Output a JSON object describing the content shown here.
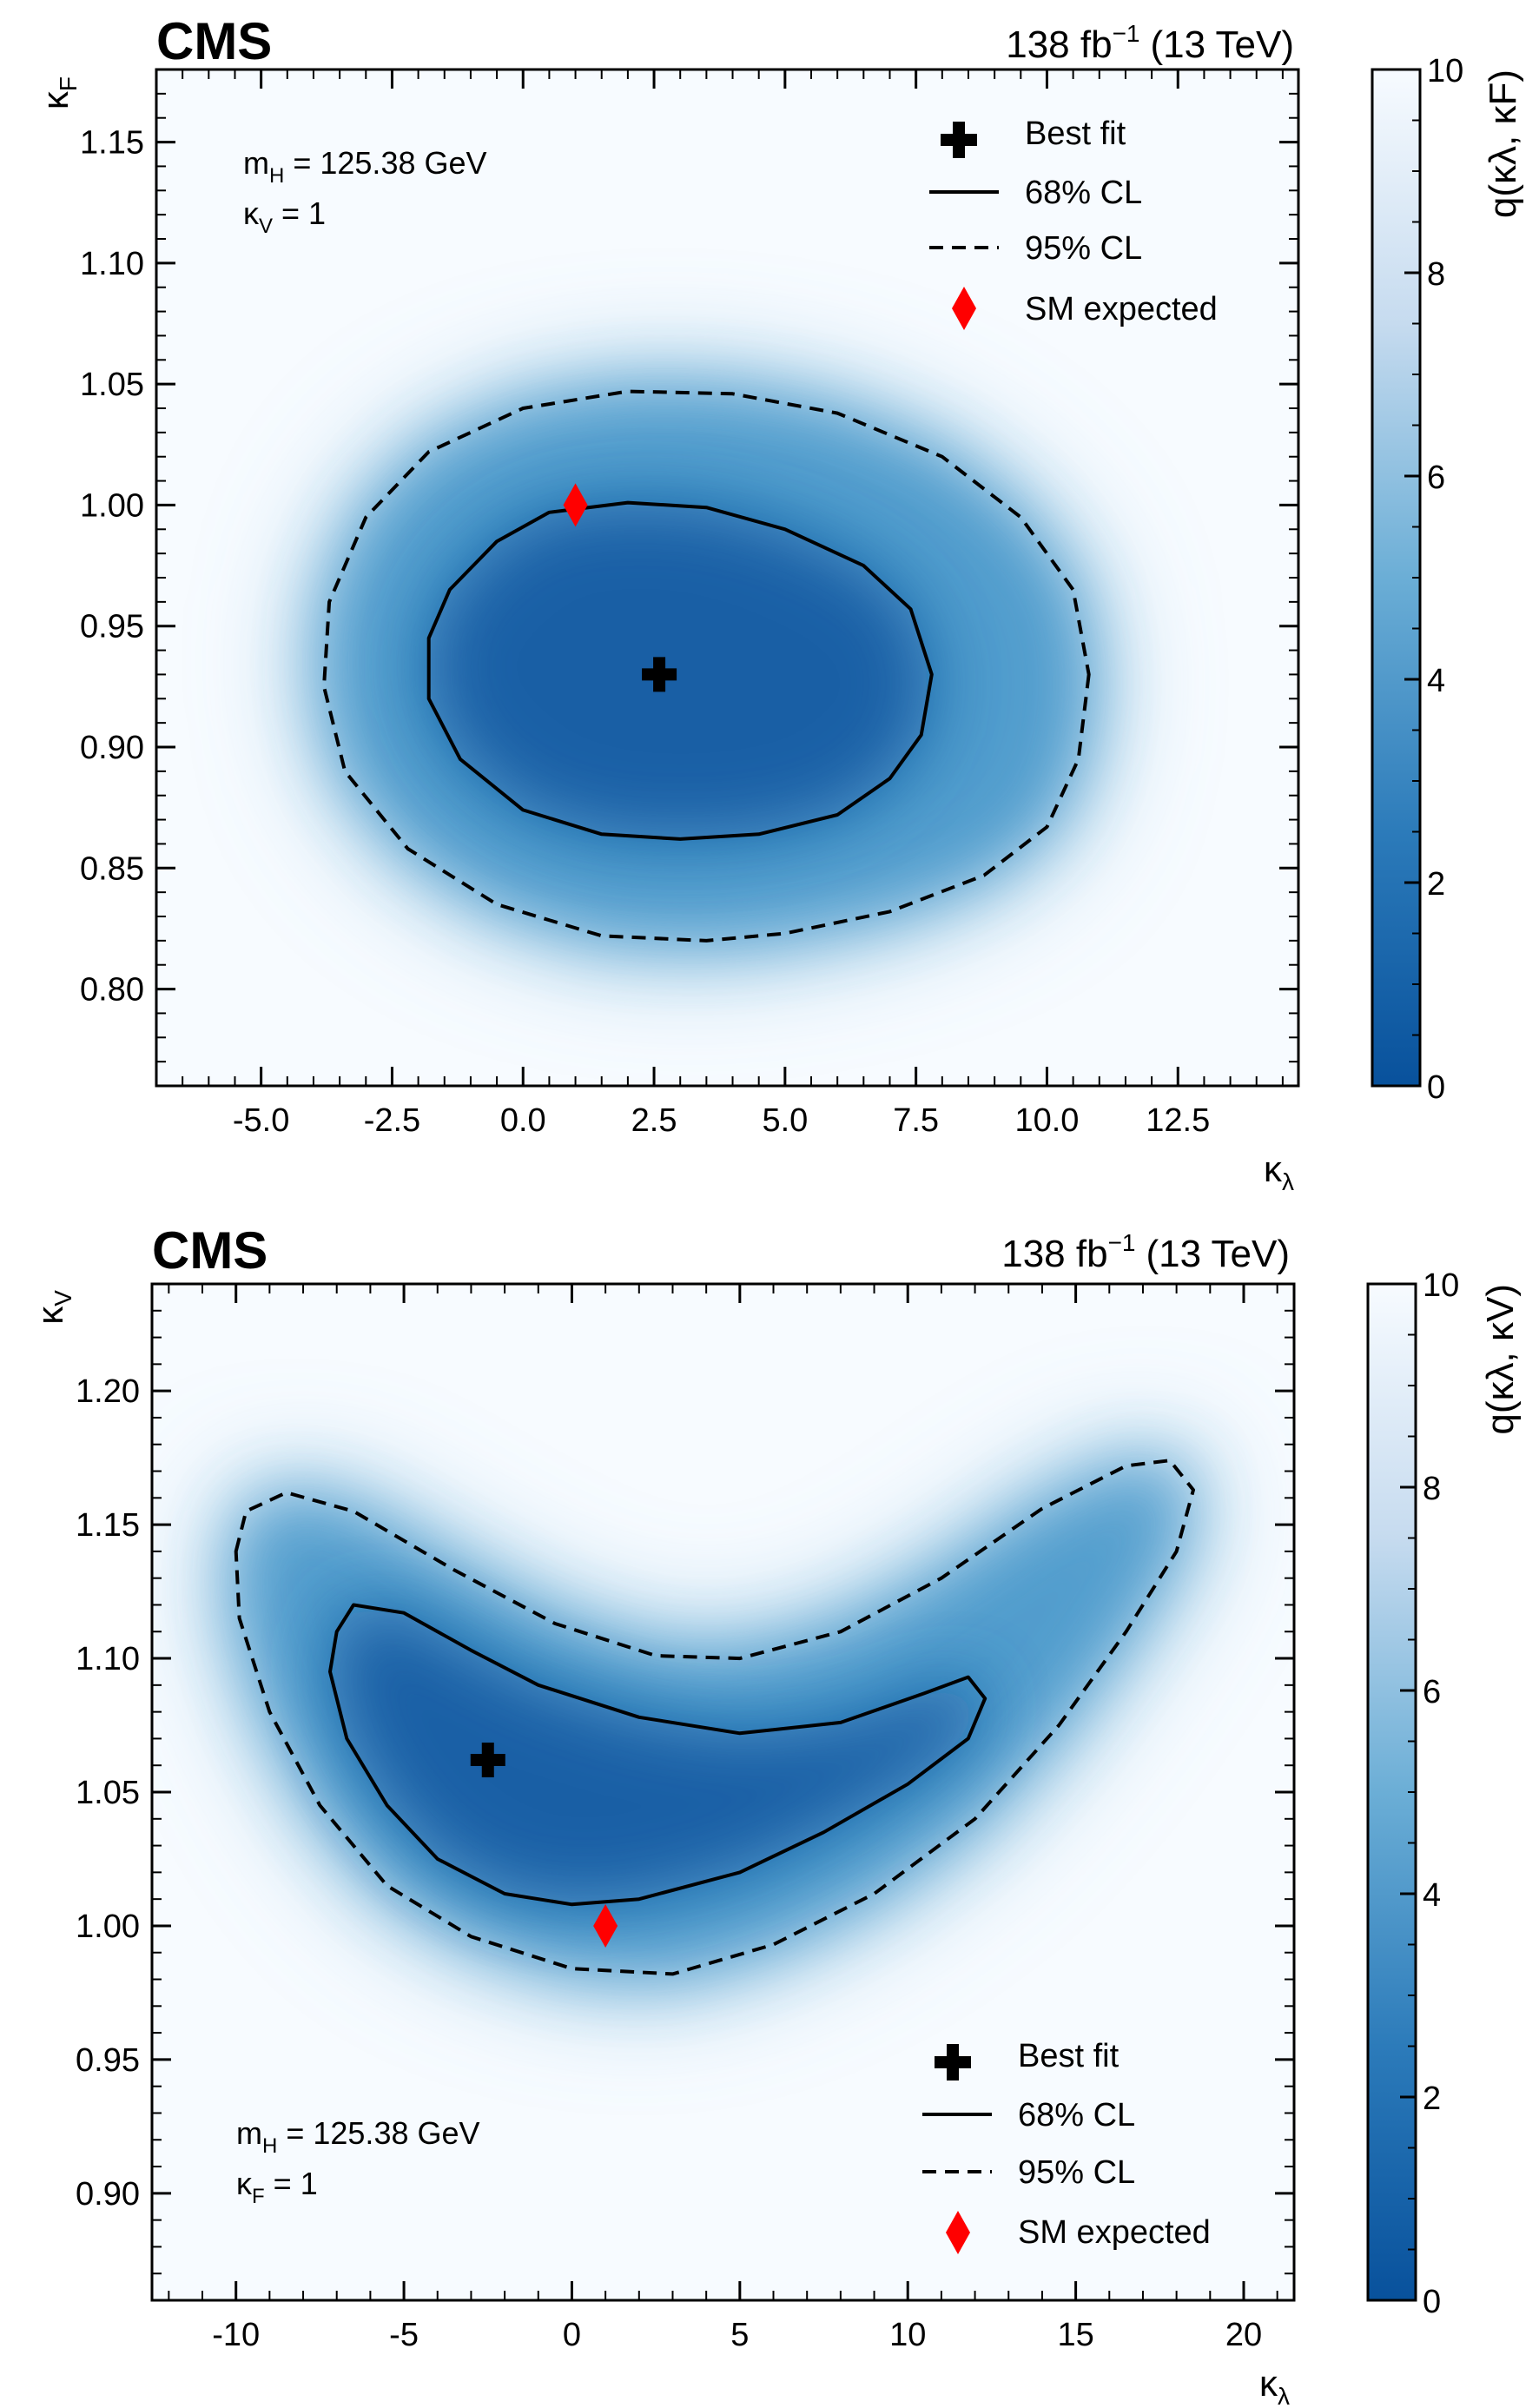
{
  "chart_data": [
    {
      "type": "heatmap",
      "experiment": "CMS",
      "lumi_label": "138 fb",
      "lumi_superscript": "−1",
      "energy_label": "(13 TeV)",
      "annotation_lines": [
        {
          "main": "m",
          "sub": "H",
          "rest": " = 125.38 GeV"
        },
        {
          "main": "κ",
          "sub": "V",
          "rest": " = 1"
        }
      ],
      "xlabel_main": "κ",
      "xlabel_sub": "λ",
      "ylabel_main": "κ",
      "ylabel_sub": "F",
      "xlim": [
        -7.0,
        14.8
      ],
      "ylim": [
        0.76,
        1.18
      ],
      "xticks": [
        -5.0,
        -2.5,
        0.0,
        2.5,
        5.0,
        7.5,
        10.0,
        12.5
      ],
      "xtick_labels": [
        "-5.0",
        "-2.5",
        "0.0",
        "2.5",
        "5.0",
        "7.5",
        "10.0",
        "12.5"
      ],
      "yticks": [
        0.8,
        0.85,
        0.9,
        0.95,
        1.0,
        1.05,
        1.1,
        1.15
      ],
      "ytick_labels": [
        "0.80",
        "0.85",
        "0.90",
        "0.95",
        "1.00",
        "1.05",
        "1.10",
        "1.15"
      ],
      "colorbar_label": "q(κλ, κF)",
      "colorbar_range": [
        0,
        10
      ],
      "colorbar_ticks": [
        0,
        2,
        4,
        6,
        8,
        10
      ],
      "colorbar_tick_labels": [
        "0",
        "2",
        "4",
        "6",
        "8",
        "10"
      ],
      "best_fit": {
        "x": 2.6,
        "y": 0.93
      },
      "sm_expected": {
        "x": 1.0,
        "y": 1.0
      },
      "contour_68": [
        [
          7.8,
          0.93
        ],
        [
          7.6,
          0.905
        ],
        [
          7.0,
          0.887
        ],
        [
          6.0,
          0.872
        ],
        [
          4.5,
          0.864
        ],
        [
          3.0,
          0.862
        ],
        [
          1.5,
          0.864
        ],
        [
          0.0,
          0.874
        ],
        [
          -1.2,
          0.895
        ],
        [
          -1.8,
          0.92
        ],
        [
          -1.8,
          0.945
        ],
        [
          -1.4,
          0.965
        ],
        [
          -0.5,
          0.985
        ],
        [
          0.5,
          0.997
        ],
        [
          2.0,
          1.001
        ],
        [
          3.5,
          0.999
        ],
        [
          5.0,
          0.99
        ],
        [
          6.5,
          0.975
        ],
        [
          7.4,
          0.957
        ],
        [
          7.8,
          0.93
        ]
      ],
      "contour_95": [
        [
          10.8,
          0.93
        ],
        [
          10.6,
          0.895
        ],
        [
          10.0,
          0.867
        ],
        [
          8.8,
          0.847
        ],
        [
          7.0,
          0.832
        ],
        [
          5.0,
          0.823
        ],
        [
          3.5,
          0.82
        ],
        [
          1.5,
          0.822
        ],
        [
          -0.5,
          0.835
        ],
        [
          -2.2,
          0.858
        ],
        [
          -3.4,
          0.89
        ],
        [
          -3.8,
          0.925
        ],
        [
          -3.7,
          0.96
        ],
        [
          -3.0,
          0.995
        ],
        [
          -1.8,
          1.022
        ],
        [
          0.0,
          1.04
        ],
        [
          2.0,
          1.047
        ],
        [
          4.0,
          1.046
        ],
        [
          6.0,
          1.038
        ],
        [
          8.0,
          1.02
        ],
        [
          9.5,
          0.995
        ],
        [
          10.5,
          0.965
        ],
        [
          10.8,
          0.93
        ]
      ],
      "legend": {
        "position": "top-right",
        "entries": [
          {
            "marker": "plus",
            "label": "Best fit"
          },
          {
            "marker": "solid",
            "label": "68% CL"
          },
          {
            "marker": "dashed",
            "label": "95% CL"
          },
          {
            "marker": "diamond",
            "label": "SM expected"
          }
        ]
      }
    },
    {
      "type": "heatmap",
      "experiment": "CMS",
      "lumi_label": "138 fb",
      "lumi_superscript": "−1",
      "energy_label": "(13 TeV)",
      "annotation_lines": [
        {
          "main": "m",
          "sub": "H",
          "rest": " = 125.38 GeV"
        },
        {
          "main": "κ",
          "sub": "F",
          "rest": " = 1"
        }
      ],
      "xlabel_main": "κ",
      "xlabel_sub": "λ",
      "ylabel_main": "κ",
      "ylabel_sub": "V",
      "xlim": [
        -12.5,
        21.5
      ],
      "ylim": [
        0.86,
        1.24
      ],
      "xticks": [
        -10,
        -5,
        0,
        5,
        10,
        15,
        20
      ],
      "xtick_labels": [
        "-10",
        "-5",
        "0",
        "5",
        "10",
        "15",
        "20"
      ],
      "yticks": [
        0.9,
        0.95,
        1.0,
        1.05,
        1.1,
        1.15,
        1.2
      ],
      "ytick_labels": [
        "0.90",
        "0.95",
        "1.00",
        "1.05",
        "1.10",
        "1.15",
        "1.20"
      ],
      "colorbar_label": "q(κλ, κV)",
      "colorbar_range": [
        0,
        10
      ],
      "colorbar_ticks": [
        0,
        2,
        4,
        6,
        8,
        10
      ],
      "colorbar_tick_labels": [
        "0",
        "2",
        "4",
        "6",
        "8",
        "10"
      ],
      "best_fit": {
        "x": -2.5,
        "y": 1.062
      },
      "sm_expected": {
        "x": 1.0,
        "y": 1.0
      },
      "contour_68": [
        [
          -7.0,
          1.11
        ],
        [
          -6.5,
          1.12
        ],
        [
          -5.0,
          1.117
        ],
        [
          -3.0,
          1.103
        ],
        [
          -1.0,
          1.09
        ],
        [
          2.0,
          1.078
        ],
        [
          5.0,
          1.072
        ],
        [
          8.0,
          1.076
        ],
        [
          10.5,
          1.087
        ],
        [
          11.8,
          1.093
        ],
        [
          12.3,
          1.085
        ],
        [
          11.8,
          1.07
        ],
        [
          10.0,
          1.053
        ],
        [
          7.5,
          1.035
        ],
        [
          5.0,
          1.02
        ],
        [
          2.0,
          1.01
        ],
        [
          0.0,
          1.008
        ],
        [
          -2.0,
          1.012
        ],
        [
          -4.0,
          1.025
        ],
        [
          -5.5,
          1.045
        ],
        [
          -6.7,
          1.07
        ],
        [
          -7.2,
          1.095
        ],
        [
          -7.0,
          1.11
        ]
      ],
      "contour_95": [
        [
          -10.0,
          1.14
        ],
        [
          -9.7,
          1.155
        ],
        [
          -8.5,
          1.162
        ],
        [
          -6.5,
          1.155
        ],
        [
          -3.5,
          1.133
        ],
        [
          -0.5,
          1.113
        ],
        [
          2.5,
          1.101
        ],
        [
          5.0,
          1.1
        ],
        [
          8.0,
          1.11
        ],
        [
          11.0,
          1.13
        ],
        [
          14.0,
          1.156
        ],
        [
          16.5,
          1.172
        ],
        [
          17.8,
          1.174
        ],
        [
          18.5,
          1.163
        ],
        [
          18.0,
          1.14
        ],
        [
          16.5,
          1.11
        ],
        [
          14.5,
          1.075
        ],
        [
          12.0,
          1.04
        ],
        [
          9.0,
          1.012
        ],
        [
          6.0,
          0.993
        ],
        [
          3.0,
          0.982
        ],
        [
          0.0,
          0.984
        ],
        [
          -3.0,
          0.996
        ],
        [
          -5.5,
          1.015
        ],
        [
          -7.5,
          1.045
        ],
        [
          -9.0,
          1.08
        ],
        [
          -9.9,
          1.115
        ],
        [
          -10.0,
          1.14
        ]
      ],
      "legend": {
        "position": "bottom-right",
        "entries": [
          {
            "marker": "plus",
            "label": "Best fit"
          },
          {
            "marker": "solid",
            "label": "68% CL"
          },
          {
            "marker": "dashed",
            "label": "95% CL"
          },
          {
            "marker": "diamond",
            "label": "SM expected"
          }
        ]
      }
    }
  ],
  "colors": {
    "scale_low": "#08519c",
    "scale_mid": "#6baed6",
    "scale_high": "#f7fbff",
    "sm_marker": "#ff0000",
    "contour": "#000000"
  }
}
